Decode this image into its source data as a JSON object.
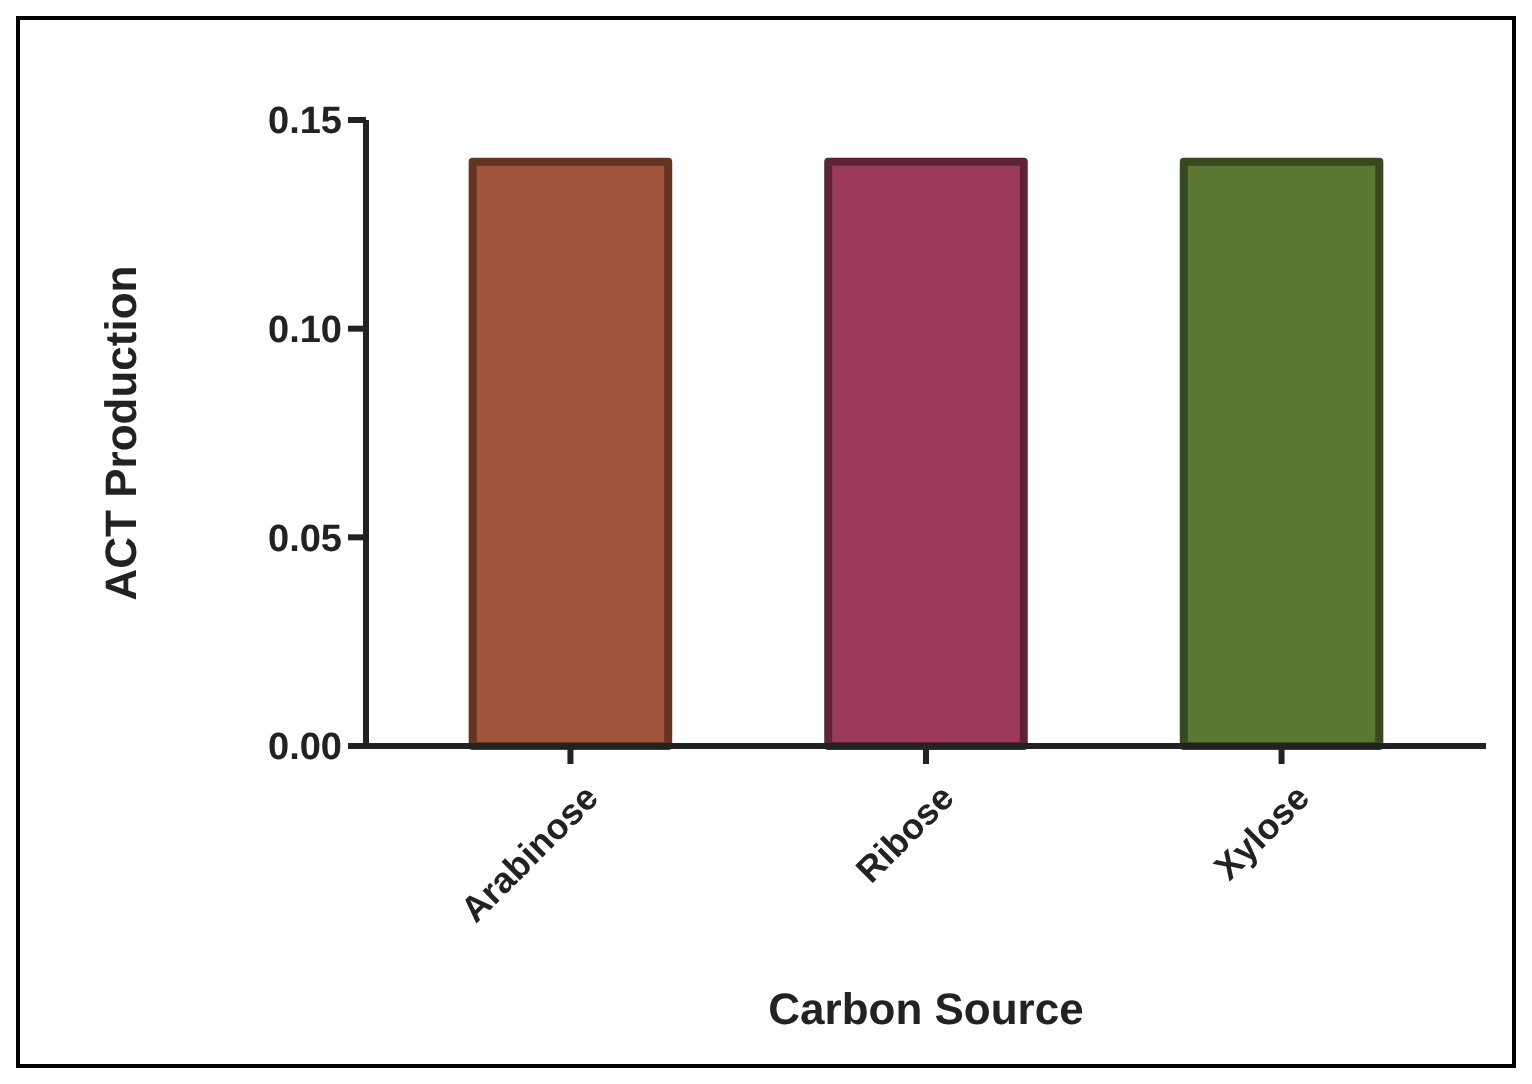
{
  "chart_data": {
    "type": "bar",
    "xlabel": "Carbon Source",
    "ylabel": "ACT Production",
    "categories": [
      "Arabinose",
      "Ribose",
      "Xylose"
    ],
    "values": [
      0.14,
      0.14,
      0.14
    ],
    "colors": [
      "#a0553a",
      "#9c3a5e",
      "#5a7832"
    ],
    "ylim": [
      0,
      0.15
    ],
    "yticks": [
      {
        "value": 0,
        "label": "0.00"
      },
      {
        "value": 0.05,
        "label": "0.05"
      },
      {
        "value": 0.1,
        "label": "0.10"
      },
      0.15
    ],
    "grid": false
  }
}
